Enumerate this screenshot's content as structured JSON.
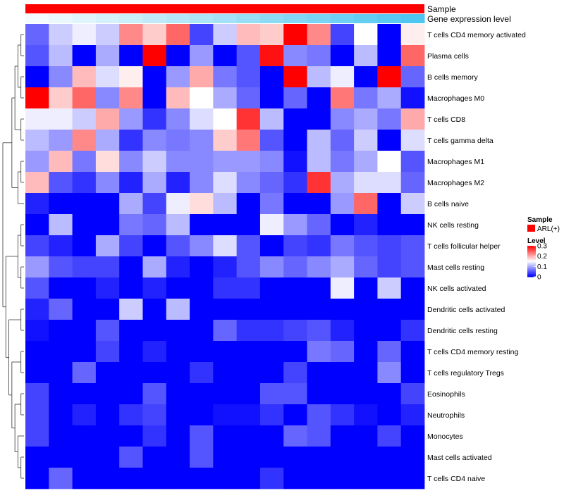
{
  "chart_data": {
    "type": "heatmap",
    "title": "",
    "annotation_tracks": [
      {
        "name": "Sample",
        "color": "#ff0000"
      },
      {
        "name": "Gene expression level",
        "gradient_from": "#f4fbfe",
        "gradient_to": "#4fc6f0"
      }
    ],
    "rows": [
      "T cells CD4 memory activated",
      "Plasma cells",
      "B cells memory",
      "Macrophages M0",
      "T cells CD8",
      "T cells gamma delta",
      "Macrophages M1",
      "Macrophages M2",
      "B cells naive",
      "NK cells resting",
      "T cells follicular helper",
      "Mast cells resting",
      "NK cells activated",
      "Dendritic cells activated",
      "Dendritic cells resting",
      "T cells CD4 memory resting",
      "T cells regulatory  Tregs",
      "Eosinophils",
      "Neutrophils",
      "Monocytes",
      "Mast cells activated",
      "T cells CD4 naive"
    ],
    "n_columns": 17,
    "values": [
      [
        0.06,
        0.12,
        0.14,
        0.12,
        0.22,
        0.18,
        0.24,
        0.04,
        0.12,
        0.19,
        0.18,
        0.3,
        0.22,
        0.04,
        0.15,
        0.0,
        0.16
      ],
      [
        0.05,
        0.11,
        0.0,
        0.1,
        0.0,
        0.3,
        0.0,
        0.09,
        0.0,
        0.05,
        0.29,
        0.08,
        0.07,
        0.0,
        0.11,
        0.0,
        0.24
      ],
      [
        0.0,
        0.08,
        0.19,
        0.13,
        0.16,
        0.0,
        0.09,
        0.2,
        0.07,
        0.05,
        0.0,
        0.3,
        0.11,
        0.14,
        0.0,
        0.3,
        0.06
      ],
      [
        0.3,
        0.18,
        0.24,
        0.08,
        0.22,
        0.0,
        0.19,
        0.15,
        0.1,
        0.06,
        0.0,
        0.06,
        0.0,
        0.23,
        0.07,
        0.1,
        0.01
      ],
      [
        0.14,
        0.14,
        0.12,
        0.2,
        0.09,
        0.03,
        0.08,
        0.13,
        0.15,
        0.27,
        0.11,
        0.0,
        0.0,
        0.08,
        0.1,
        0.07,
        0.2
      ],
      [
        0.11,
        0.09,
        0.22,
        0.1,
        0.03,
        0.08,
        0.07,
        0.08,
        0.18,
        0.23,
        0.05,
        0.0,
        0.11,
        0.06,
        0.12,
        0.0,
        0.13
      ],
      [
        0.09,
        0.19,
        0.07,
        0.17,
        0.08,
        0.12,
        0.08,
        0.08,
        0.09,
        0.09,
        0.08,
        0.01,
        0.11,
        0.07,
        0.1,
        0.15,
        0.05
      ],
      [
        0.19,
        0.05,
        0.03,
        0.08,
        0.02,
        0.1,
        0.02,
        0.08,
        0.13,
        0.08,
        0.06,
        0.03,
        0.27,
        0.1,
        0.13,
        0.13,
        0.06
      ],
      [
        0.02,
        0.0,
        0.0,
        0.0,
        0.1,
        0.04,
        0.14,
        0.17,
        0.11,
        0.0,
        0.07,
        0.0,
        0.0,
        0.09,
        0.24,
        0.0,
        0.12
      ],
      [
        0.0,
        0.11,
        0.0,
        0.0,
        0.07,
        0.06,
        0.11,
        0.0,
        0.0,
        0.0,
        0.14,
        0.09,
        0.06,
        0.0,
        0.02,
        0.0,
        0.0
      ],
      [
        0.04,
        0.02,
        0.0,
        0.1,
        0.04,
        0.0,
        0.05,
        0.08,
        0.13,
        0.05,
        0.0,
        0.04,
        0.03,
        0.07,
        0.05,
        0.04,
        0.05
      ],
      [
        0.09,
        0.05,
        0.04,
        0.04,
        0.0,
        0.1,
        0.02,
        0.0,
        0.02,
        0.05,
        0.08,
        0.06,
        0.08,
        0.1,
        0.06,
        0.04,
        0.05
      ],
      [
        0.05,
        0.0,
        0.0,
        0.02,
        0.0,
        0.02,
        0.0,
        0.0,
        0.03,
        0.03,
        0.0,
        0.0,
        0.0,
        0.14,
        0.0,
        0.12,
        0.0
      ],
      [
        0.02,
        0.06,
        0.0,
        0.0,
        0.12,
        0.0,
        0.11,
        0.0,
        0.0,
        0.0,
        0.0,
        0.0,
        0.0,
        0.0,
        0.0,
        0.0,
        0.0
      ],
      [
        0.01,
        0.0,
        0.0,
        0.05,
        0.0,
        0.0,
        0.0,
        0.0,
        0.06,
        0.03,
        0.03,
        0.04,
        0.05,
        0.02,
        0.0,
        0.0,
        0.03
      ],
      [
        0.0,
        0.0,
        0.0,
        0.04,
        0.0,
        0.02,
        0.0,
        0.0,
        0.0,
        0.0,
        0.0,
        0.0,
        0.07,
        0.06,
        0.0,
        0.06,
        0.0
      ],
      [
        0.0,
        0.0,
        0.06,
        0.0,
        0.0,
        0.0,
        0.0,
        0.03,
        0.0,
        0.0,
        0.0,
        0.04,
        0.0,
        0.0,
        0.0,
        0.08,
        0.0
      ],
      [
        0.04,
        0.0,
        0.0,
        0.0,
        0.0,
        0.05,
        0.0,
        0.0,
        0.0,
        0.0,
        0.05,
        0.05,
        0.0,
        0.0,
        0.0,
        0.0,
        0.04
      ],
      [
        0.04,
        0.0,
        0.02,
        0.0,
        0.03,
        0.04,
        0.0,
        0.0,
        0.01,
        0.01,
        0.03,
        0.0,
        0.05,
        0.03,
        0.01,
        0.0,
        0.02
      ],
      [
        0.04,
        0.0,
        0.0,
        0.0,
        0.0,
        0.03,
        0.0,
        0.05,
        0.0,
        0.0,
        0.0,
        0.06,
        0.05,
        0.0,
        0.0,
        0.04,
        0.0
      ],
      [
        0.0,
        0.0,
        0.0,
        0.0,
        0.05,
        0.0,
        0.0,
        0.05,
        0.0,
        0.0,
        0.0,
        0.0,
        0.0,
        0.0,
        0.0,
        0.0,
        0.0
      ],
      [
        0.0,
        0.06,
        0.0,
        0.0,
        0.0,
        0.0,
        0.0,
        0.0,
        0.0,
        0.0,
        0.03,
        0.0,
        0.0,
        0.0,
        0.0,
        0.0,
        0.0
      ]
    ],
    "color_scale": {
      "min": 0,
      "max": 0.3,
      "low": "#0000ff",
      "mid": "#ffffff",
      "high": "#ff0000",
      "mid_value": 0.15
    },
    "legends": {
      "sample": {
        "title": "Sample",
        "label": "ARL(+)",
        "color": "#ff0000"
      },
      "level": {
        "title": "Level",
        "ticks": [
          {
            "value": 0.3,
            "label": "0.3"
          },
          {
            "value": 0.2,
            "label": "0.2"
          },
          {
            "value": 0.1,
            "label": "0.1"
          },
          {
            "value": 0,
            "label": "0"
          }
        ]
      }
    }
  }
}
